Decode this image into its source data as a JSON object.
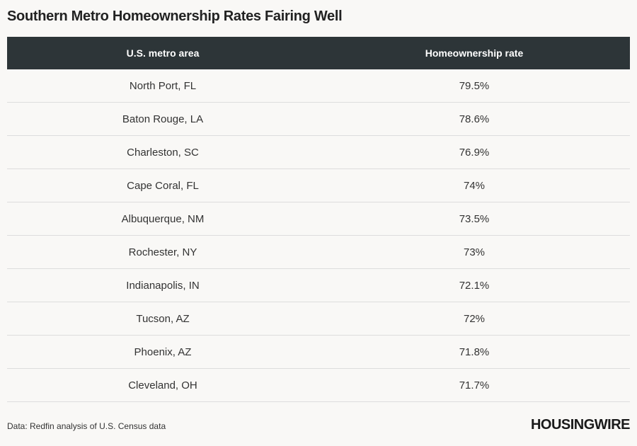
{
  "title": "Southern Metro Homeownership Rates Fairing Well",
  "chart_data": {
    "type": "table",
    "columns": [
      "U.S. metro area",
      "Homeownership rate"
    ],
    "rows": [
      [
        "North Port, FL",
        "79.5%"
      ],
      [
        "Baton Rouge, LA",
        "78.6%"
      ],
      [
        "Charleston, SC",
        "76.9%"
      ],
      [
        "Cape Coral, FL",
        "74%"
      ],
      [
        "Albuquerque, NM",
        "73.5%"
      ],
      [
        "Rochester, NY",
        "73%"
      ],
      [
        "Indianapolis, IN",
        "72.1%"
      ],
      [
        "Tucson, AZ",
        "72%"
      ],
      [
        "Phoenix, AZ",
        "71.8%"
      ],
      [
        "Cleveland, OH",
        "71.7%"
      ]
    ]
  },
  "footer": {
    "source": "Data: Redfin analysis of U.S. Census data",
    "logo": "HOUSINGWIRE"
  },
  "colors": {
    "header_bg": "#2d3538",
    "page_bg": "#f9f8f6"
  }
}
